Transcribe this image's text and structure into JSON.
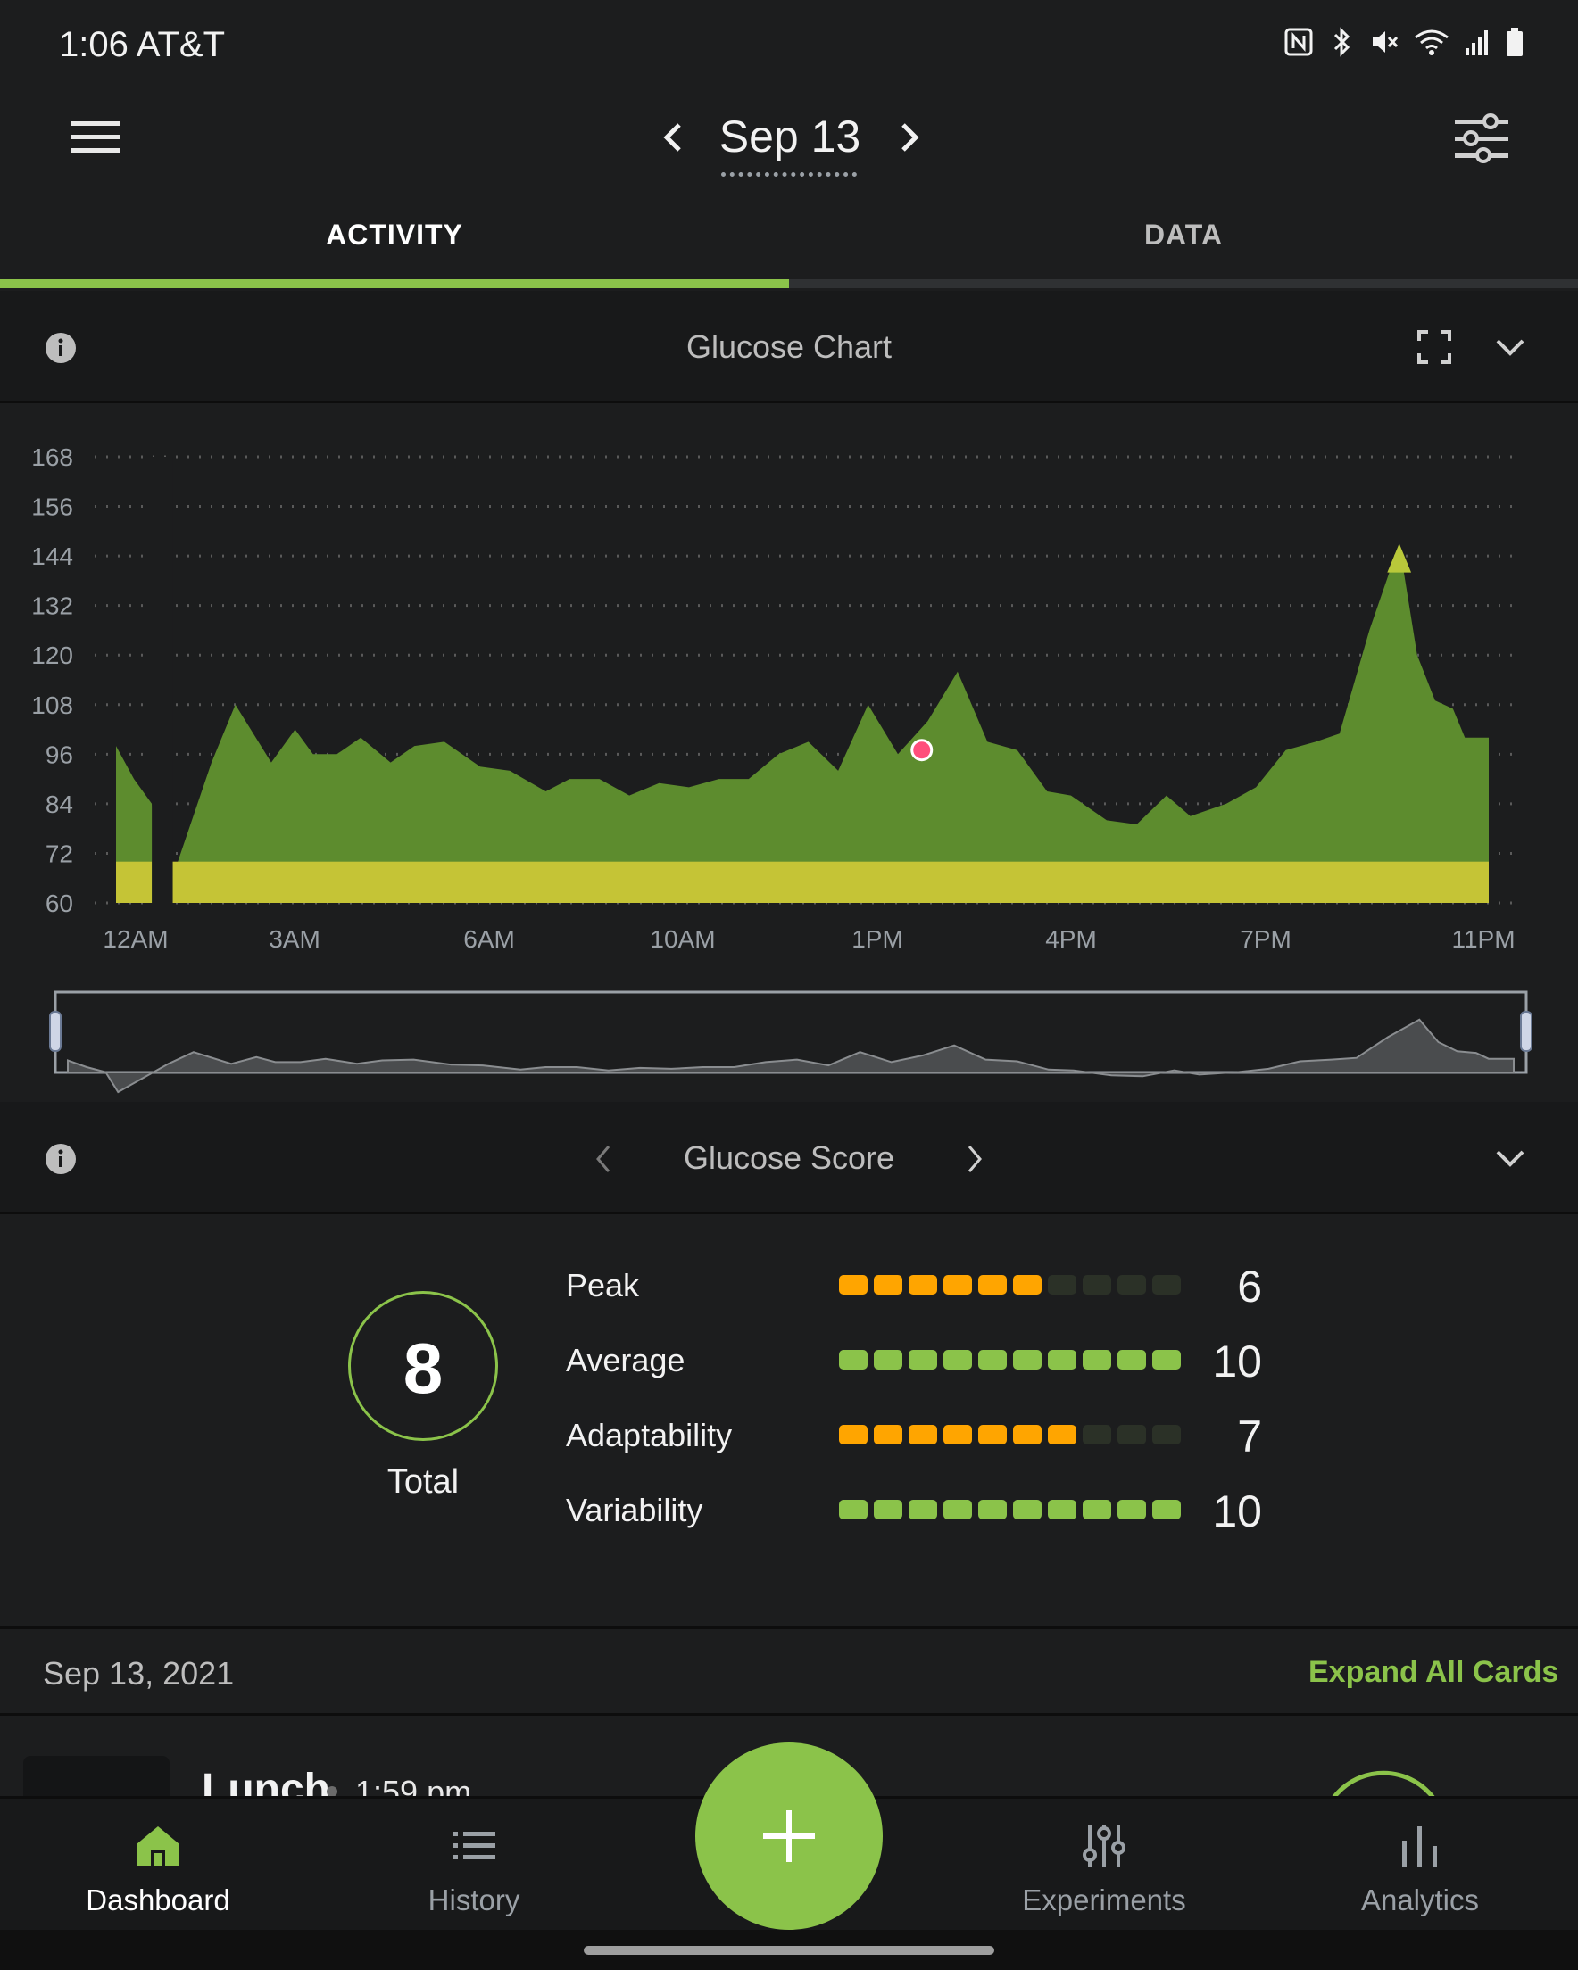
{
  "status_bar": {
    "time_carrier": "1:06 AT&T",
    "icons": [
      "nfc-icon",
      "bluetooth-icon",
      "mute-icon",
      "wifi-icon",
      "signal-icon",
      "battery-icon"
    ]
  },
  "app_bar": {
    "date": "Sep 13",
    "menu_icon": "hamburger-icon",
    "filter_icon": "sliders-icon"
  },
  "tabs": [
    {
      "label": "ACTIVITY",
      "active": true
    },
    {
      "label": "DATA",
      "active": false
    }
  ],
  "glucose_chart_card": {
    "title": "Glucose Chart",
    "icons": [
      "info-icon",
      "fullscreen-icon",
      "chevron-down-icon"
    ]
  },
  "chart_data": {
    "type": "area",
    "title": "",
    "xlabel": "",
    "ylabel": "",
    "ylim": [
      60,
      168
    ],
    "yticks": [
      "168",
      "156",
      "144",
      "132",
      "120",
      "108",
      "96",
      "84",
      "72",
      "60"
    ],
    "xticks": [
      "12AM",
      "3AM",
      "6AM",
      "10AM",
      "1PM",
      "4PM",
      "7PM",
      "11PM"
    ],
    "grid": "dotted horizontal",
    "target_range_band": [
      60,
      70
    ],
    "series": [
      {
        "x_hours": [
          0.0,
          0.3,
          0.6,
          0.8,
          0.8,
          1.6,
          2.0,
          2.6,
          3.0,
          3.3,
          3.7,
          4.1,
          4.6,
          5.0,
          5.5,
          6.1,
          6.6,
          7.2,
          7.6,
          8.1,
          8.6,
          9.1,
          9.6,
          10.1,
          10.6,
          11.1,
          11.6,
          12.1,
          12.6,
          13.1,
          13.6,
          14.1,
          14.6,
          15.1,
          15.6,
          16.0,
          16.6,
          17.1,
          17.6,
          18.0,
          18.6,
          19.1,
          19.6,
          20.1,
          20.5,
          21.0,
          21.5,
          21.8,
          22.1,
          22.4,
          22.6,
          22.8,
          23.0
        ],
        "y": [
          98,
          90,
          84,
          60,
          60,
          94,
          108,
          94,
          102,
          96,
          96,
          100,
          94,
          98,
          99,
          93,
          92,
          87,
          90,
          90,
          86,
          89,
          88,
          90,
          90,
          96,
          99,
          92,
          108,
          96,
          104,
          116,
          99,
          97,
          87,
          86,
          80,
          79,
          86,
          81,
          84,
          88,
          97,
          99,
          101,
          126,
          147,
          120,
          109,
          107,
          100,
          100,
          100
        ]
      }
    ],
    "marker": {
      "x_hours": 13.5,
      "y": 97
    }
  },
  "glucose_score_card": {
    "title": "Glucose Score",
    "total_value": "8",
    "total_label": "Total",
    "metrics": [
      {
        "label": "Peak",
        "value": "6",
        "filled": 6,
        "color": "#ffa500"
      },
      {
        "label": "Average",
        "value": "10",
        "filled": 10,
        "color": "#8bc34a"
      },
      {
        "label": "Adaptability",
        "value": "7",
        "filled": 7,
        "color": "#ffa500"
      },
      {
        "label": "Variability",
        "value": "10",
        "filled": 10,
        "color": "#8bc34a"
      }
    ]
  },
  "date_row": {
    "label": "Sep 13, 2021",
    "expand_all": "Expand All Cards"
  },
  "meal_card": {
    "title": "Lunch",
    "time": "1:59 pm"
  },
  "bottom_nav": [
    {
      "label": "Dashboard",
      "icon": "home-icon",
      "active": true
    },
    {
      "label": "History",
      "icon": "list-icon",
      "active": false
    },
    {
      "label": "Experiments",
      "icon": "experiments-icon",
      "active": false
    },
    {
      "label": "Analytics",
      "icon": "bar-chart-icon",
      "active": false
    }
  ],
  "fab": {
    "icon": "plus-icon"
  },
  "colors": {
    "accent": "#8bc34a",
    "area_fill": "#5d8c2e",
    "target_band": "#c5c436",
    "warning": "#ffa500",
    "marker": "#ff4f7b"
  }
}
